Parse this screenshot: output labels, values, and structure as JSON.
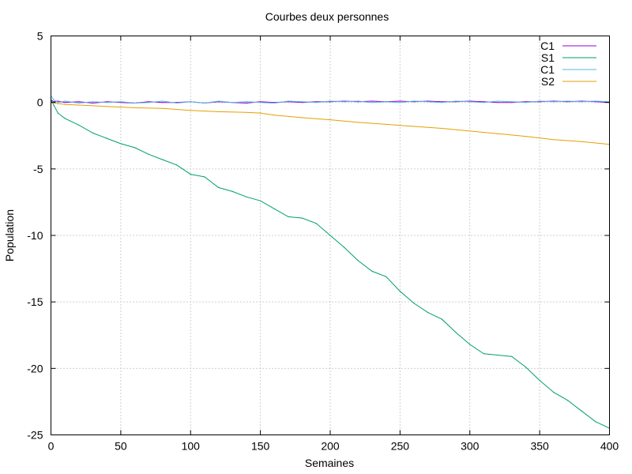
{
  "chart_data": {
    "type": "line",
    "title": "Courbes deux personnes",
    "xlabel": "Semaines",
    "ylabel": "Population",
    "xlim": [
      0,
      400
    ],
    "ylim": [
      -25,
      5
    ],
    "xticks": [
      0,
      50,
      100,
      150,
      200,
      250,
      300,
      350,
      400
    ],
    "yticks": [
      5,
      0,
      -5,
      -10,
      -15,
      -20,
      -25
    ],
    "grid": true,
    "legend_position": "top-right",
    "series": [
      {
        "name": "C1",
        "color": "#9400d3",
        "x": [
          0,
          2,
          5,
          10,
          20,
          30,
          40,
          50,
          60,
          70,
          80,
          90,
          100,
          110,
          120,
          130,
          140,
          150,
          160,
          170,
          180,
          190,
          200,
          210,
          220,
          230,
          240,
          250,
          260,
          270,
          280,
          290,
          300,
          310,
          320,
          330,
          340,
          350,
          360,
          370,
          380,
          390,
          400
        ],
        "y": [
          0.2,
          0.05,
          0.1,
          0.0,
          0.05,
          -0.05,
          0.05,
          0.0,
          -0.05,
          0.05,
          0.0,
          0.0,
          0.05,
          -0.05,
          0.05,
          0.0,
          -0.05,
          0.05,
          0.0,
          0.05,
          0.0,
          0.05,
          0.05,
          0.1,
          0.05,
          0.1,
          0.05,
          0.1,
          0.05,
          0.1,
          0.05,
          0.05,
          0.1,
          0.05,
          0.0,
          0.0,
          0.05,
          0.05,
          0.1,
          0.05,
          0.1,
          0.05,
          0.0
        ]
      },
      {
        "name": "S1",
        "color": "#009e73",
        "x": [
          0,
          5,
          10,
          20,
          30,
          40,
          50,
          60,
          70,
          80,
          90,
          100,
          110,
          120,
          130,
          140,
          150,
          160,
          170,
          180,
          190,
          200,
          210,
          220,
          230,
          240,
          250,
          260,
          270,
          280,
          290,
          300,
          310,
          320,
          330,
          340,
          350,
          360,
          370,
          380,
          390,
          400
        ],
        "y": [
          0.2,
          -0.8,
          -1.2,
          -1.7,
          -2.3,
          -2.7,
          -3.1,
          -3.4,
          -3.9,
          -4.3,
          -4.7,
          -5.4,
          -5.6,
          -6.4,
          -6.7,
          -7.1,
          -7.4,
          -8.0,
          -8.6,
          -8.7,
          -9.1,
          -10.0,
          -10.9,
          -11.9,
          -12.7,
          -13.1,
          -14.2,
          -15.1,
          -15.8,
          -16.3,
          -17.3,
          -18.2,
          -18.9,
          -19.0,
          -19.1,
          -19.9,
          -20.9,
          -21.8,
          -22.4,
          -23.2,
          -24.0,
          -24.5
        ]
      },
      {
        "name": "C1",
        "color": "#56b4e9",
        "x": [
          0,
          2,
          5,
          10,
          20,
          30,
          40,
          50,
          60,
          70,
          80,
          90,
          100,
          110,
          120,
          130,
          140,
          150,
          160,
          170,
          180,
          190,
          200,
          210,
          220,
          230,
          240,
          250,
          260,
          270,
          280,
          290,
          300,
          310,
          320,
          330,
          340,
          350,
          360,
          370,
          380,
          390,
          400
        ],
        "y": [
          0.5,
          0.2,
          0.0,
          0.1,
          -0.05,
          0.05,
          0.0,
          0.05,
          -0.05,
          0.0,
          0.1,
          -0.05,
          0.05,
          -0.05,
          0.1,
          0.0,
          0.05,
          0.0,
          -0.05,
          0.1,
          0.05,
          0.0,
          0.1,
          0.05,
          0.1,
          0.0,
          0.05,
          0.0,
          0.1,
          0.05,
          0.0,
          0.1,
          0.05,
          0.0,
          0.1,
          0.05,
          0.0,
          0.1,
          0.05,
          0.1,
          0.05,
          0.1,
          0.05
        ]
      },
      {
        "name": "S2",
        "color": "#e69f00",
        "x": [
          0,
          10,
          20,
          40,
          60,
          80,
          100,
          120,
          140,
          150,
          160,
          180,
          200,
          220,
          240,
          260,
          280,
          300,
          320,
          340,
          360,
          380,
          400
        ],
        "y": [
          0.0,
          -0.15,
          -0.2,
          -0.3,
          -0.4,
          -0.45,
          -0.6,
          -0.7,
          -0.75,
          -0.8,
          -0.95,
          -1.15,
          -1.3,
          -1.5,
          -1.65,
          -1.8,
          -1.95,
          -2.15,
          -2.35,
          -2.55,
          -2.8,
          -2.95,
          -3.15
        ]
      }
    ]
  }
}
